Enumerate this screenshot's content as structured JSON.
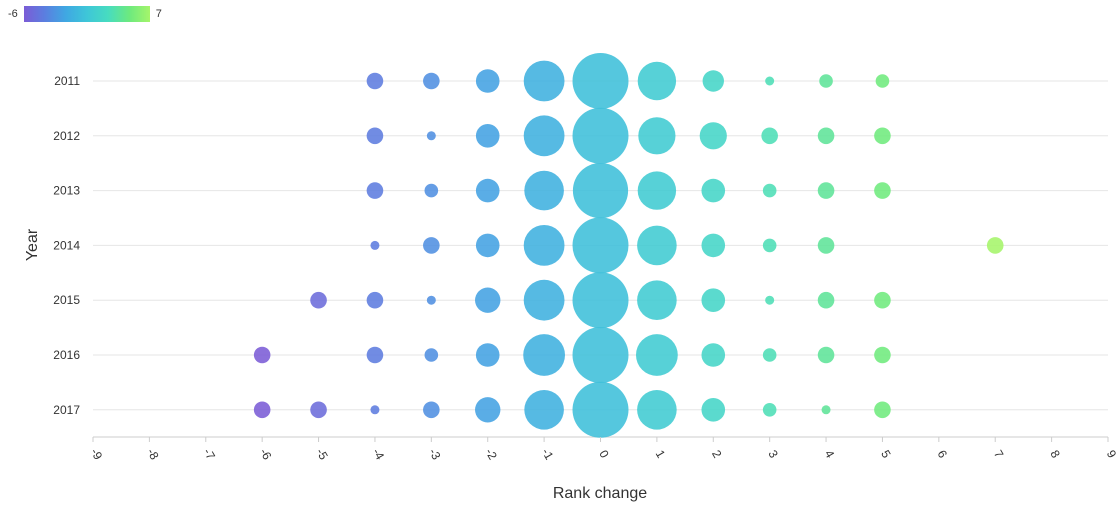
{
  "chart_data": {
    "type": "scatter",
    "title": "",
    "xlabel": "Rank change",
    "ylabel": "Year",
    "xlim": [
      -9,
      9
    ],
    "x_ticks": [
      "-9",
      "-8",
      "-7",
      "-6",
      "-5",
      "-4",
      "-3",
      "-2",
      "-1",
      "0",
      "1",
      "2",
      "3",
      "4",
      "5",
      "6",
      "7",
      "8",
      "9"
    ],
    "years": [
      "2011",
      "2012",
      "2013",
      "2014",
      "2015",
      "2016",
      "2017"
    ],
    "color_scale": {
      "min_label": "-6",
      "max_label": "7",
      "min": -6,
      "max": 7,
      "colors": [
        "#7b5cd6",
        "#5a7fe0",
        "#3fa8e2",
        "#3ec6d8",
        "#47dcc0",
        "#6ce97f",
        "#a5f56a"
      ]
    },
    "legend_position": "top-left",
    "grid": "horizontal",
    "size_meaning": "relative bubble size (count)",
    "points": [
      {
        "year": "2011",
        "x": -4,
        "size": 3
      },
      {
        "year": "2011",
        "x": -3,
        "size": 3
      },
      {
        "year": "2011",
        "x": -2,
        "size": 6
      },
      {
        "year": "2011",
        "x": -1,
        "size": 18
      },
      {
        "year": "2011",
        "x": 0,
        "size": 34
      },
      {
        "year": "2011",
        "x": 1,
        "size": 16
      },
      {
        "year": "2011",
        "x": 2,
        "size": 5
      },
      {
        "year": "2011",
        "x": 3,
        "size": 1
      },
      {
        "year": "2011",
        "x": 4,
        "size": 2
      },
      {
        "year": "2011",
        "x": 5,
        "size": 2
      },
      {
        "year": "2012",
        "x": -4,
        "size": 3
      },
      {
        "year": "2012",
        "x": -3,
        "size": 1
      },
      {
        "year": "2012",
        "x": -2,
        "size": 6
      },
      {
        "year": "2012",
        "x": -1,
        "size": 18
      },
      {
        "year": "2012",
        "x": 0,
        "size": 34
      },
      {
        "year": "2012",
        "x": 1,
        "size": 15
      },
      {
        "year": "2012",
        "x": 2,
        "size": 8
      },
      {
        "year": "2012",
        "x": 3,
        "size": 3
      },
      {
        "year": "2012",
        "x": 4,
        "size": 3
      },
      {
        "year": "2012",
        "x": 5,
        "size": 3
      },
      {
        "year": "2013",
        "x": -4,
        "size": 3
      },
      {
        "year": "2013",
        "x": -3,
        "size": 2
      },
      {
        "year": "2013",
        "x": -2,
        "size": 6
      },
      {
        "year": "2013",
        "x": -1,
        "size": 17
      },
      {
        "year": "2013",
        "x": 0,
        "size": 33
      },
      {
        "year": "2013",
        "x": 1,
        "size": 16
      },
      {
        "year": "2013",
        "x": 2,
        "size": 6
      },
      {
        "year": "2013",
        "x": 3,
        "size": 2
      },
      {
        "year": "2013",
        "x": 4,
        "size": 3
      },
      {
        "year": "2013",
        "x": 5,
        "size": 3
      },
      {
        "year": "2014",
        "x": -4,
        "size": 1
      },
      {
        "year": "2014",
        "x": -3,
        "size": 3
      },
      {
        "year": "2014",
        "x": -2,
        "size": 6
      },
      {
        "year": "2014",
        "x": -1,
        "size": 18
      },
      {
        "year": "2014",
        "x": 0,
        "size": 34
      },
      {
        "year": "2014",
        "x": 1,
        "size": 17
      },
      {
        "year": "2014",
        "x": 2,
        "size": 6
      },
      {
        "year": "2014",
        "x": 3,
        "size": 2
      },
      {
        "year": "2014",
        "x": 4,
        "size": 3
      },
      {
        "year": "2014",
        "x": 7,
        "size": 3
      },
      {
        "year": "2015",
        "x": -5,
        "size": 3
      },
      {
        "year": "2015",
        "x": -4,
        "size": 3
      },
      {
        "year": "2015",
        "x": -3,
        "size": 1
      },
      {
        "year": "2015",
        "x": -2,
        "size": 7
      },
      {
        "year": "2015",
        "x": -1,
        "size": 18
      },
      {
        "year": "2015",
        "x": 0,
        "size": 34
      },
      {
        "year": "2015",
        "x": 1,
        "size": 17
      },
      {
        "year": "2015",
        "x": 2,
        "size": 6
      },
      {
        "year": "2015",
        "x": 3,
        "size": 1
      },
      {
        "year": "2015",
        "x": 4,
        "size": 3
      },
      {
        "year": "2015",
        "x": 5,
        "size": 3
      },
      {
        "year": "2016",
        "x": -6,
        "size": 3
      },
      {
        "year": "2016",
        "x": -4,
        "size": 3
      },
      {
        "year": "2016",
        "x": -3,
        "size": 2
      },
      {
        "year": "2016",
        "x": -2,
        "size": 6
      },
      {
        "year": "2016",
        "x": -1,
        "size": 19
      },
      {
        "year": "2016",
        "x": 0,
        "size": 34
      },
      {
        "year": "2016",
        "x": 1,
        "size": 19
      },
      {
        "year": "2016",
        "x": 2,
        "size": 6
      },
      {
        "year": "2016",
        "x": 3,
        "size": 2
      },
      {
        "year": "2016",
        "x": 4,
        "size": 3
      },
      {
        "year": "2016",
        "x": 5,
        "size": 3
      },
      {
        "year": "2017",
        "x": -6,
        "size": 3
      },
      {
        "year": "2017",
        "x": -5,
        "size": 3
      },
      {
        "year": "2017",
        "x": -4,
        "size": 1
      },
      {
        "year": "2017",
        "x": -3,
        "size": 3
      },
      {
        "year": "2017",
        "x": -2,
        "size": 7
      },
      {
        "year": "2017",
        "x": -1,
        "size": 17
      },
      {
        "year": "2017",
        "x": 0,
        "size": 34
      },
      {
        "year": "2017",
        "x": 1,
        "size": 17
      },
      {
        "year": "2017",
        "x": 2,
        "size": 6
      },
      {
        "year": "2017",
        "x": 3,
        "size": 2
      },
      {
        "year": "2017",
        "x": 4,
        "size": 1
      },
      {
        "year": "2017",
        "x": 5,
        "size": 3
      }
    ]
  }
}
